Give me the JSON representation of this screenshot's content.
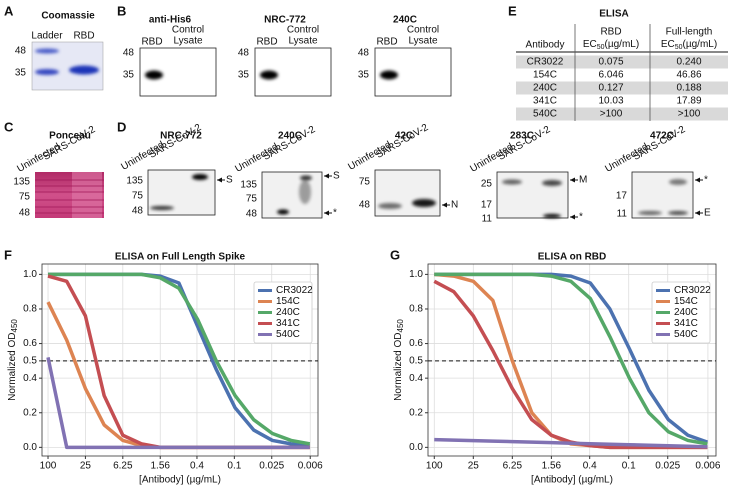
{
  "panels": {
    "A": {
      "label": "A",
      "title": "Coomassie",
      "lanes": [
        "Ladder",
        "RBD"
      ],
      "markers": [
        "48",
        "35"
      ]
    },
    "B": {
      "label": "B",
      "blots": [
        {
          "title": "anti-His6",
          "lane1": "RBD",
          "lane2": [
            "Control",
            "Lysate"
          ],
          "markers": [
            "48",
            "35"
          ]
        },
        {
          "title": "NRC-772",
          "lane1": "RBD",
          "lane2": [
            "Control",
            "Lysate"
          ],
          "markers": [
            "48",
            "35"
          ]
        },
        {
          "title": "240C",
          "lane1": "RBD",
          "lane2": [
            "Control",
            "Lysate"
          ],
          "markers": [
            "48",
            "35"
          ]
        }
      ]
    },
    "C": {
      "label": "C",
      "title": "Ponceau",
      "lanes": [
        "Uninfected",
        "SARS-CoV-2"
      ],
      "markers": [
        "135",
        "75",
        "48"
      ]
    },
    "D": {
      "label": "D",
      "blots": [
        {
          "title": "NRC-772",
          "lanes": [
            "Uninfected",
            "SARS-CoV-2"
          ],
          "markers": [
            "135",
            "75",
            "48"
          ],
          "arrows": [
            "S"
          ]
        },
        {
          "title": "240C",
          "lanes": [
            "Uninfected",
            "SARS-CoV-2"
          ],
          "markers": [
            "135",
            "75",
            "48"
          ],
          "arrows": [
            "S",
            "*"
          ]
        },
        {
          "title": "42C",
          "lanes": [
            "Uninfected",
            "SARS-CoV-2"
          ],
          "markers": [
            "75",
            "48"
          ],
          "arrows": [
            "N"
          ]
        },
        {
          "title": "283C",
          "lanes": [
            "Uninfected",
            "SARS-CoV-2"
          ],
          "markers": [
            "25",
            "17",
            "11"
          ],
          "arrows": [
            "M",
            "*"
          ]
        },
        {
          "title": "472C",
          "lanes": [
            "Uninfected",
            "SARS-CoV-2"
          ],
          "markers": [
            "17",
            "11"
          ],
          "arrows": [
            "*",
            "E"
          ]
        }
      ]
    },
    "E": {
      "label": "E",
      "title": "ELISA",
      "header": {
        "antibody": "Antibody",
        "rbd": "RBD",
        "full": "Full-length",
        "ec": "EC",
        "sub": "50",
        "unit": "(µg/mL)"
      },
      "rows": [
        [
          "CR3022",
          "0.075",
          "0.240"
        ],
        [
          "154C",
          "6.046",
          "46.86"
        ],
        [
          "240C",
          "0.127",
          "0.188"
        ],
        [
          "341C",
          "10.03",
          "17.89"
        ],
        [
          "540C",
          ">100",
          ">100"
        ]
      ]
    }
  },
  "chart_data": [
    {
      "type": "line",
      "panel_label": "F",
      "title": "ELISA on Full Length Spike",
      "xlabel": "[Antibody] (µg/mL)",
      "ylabel": "Normalized OD",
      "ylabel_sub": "450",
      "log_x": true,
      "grid": true,
      "legend": "upper right",
      "hline": 0.5,
      "xlim": [
        125,
        0.0045
      ],
      "ylim": [
        -0.05,
        1.06
      ],
      "xticks": [
        100,
        25,
        6.25,
        1.56,
        0.4,
        0.1,
        0.025,
        0.006
      ],
      "yticks": [
        {
          "value": 0,
          "label": "0.0"
        },
        0.2,
        0.4,
        0.5,
        0.6,
        0.8,
        {
          "value": 1,
          "label": "1.0"
        }
      ],
      "x": [
        100,
        50,
        25,
        12.5,
        6.25,
        3.125,
        1.5625,
        0.78125,
        0.390625,
        0.1953125,
        0.09765625,
        0.048828125,
        0.0244140625,
        0.01220703125,
        0.006103515625
      ],
      "series": [
        {
          "name": "CR3022",
          "color": "#4c72b0",
          "values": [
            1,
            1,
            1,
            1,
            1,
            1,
            0.99,
            0.95,
            0.7,
            0.45,
            0.23,
            0.1,
            0.04,
            0.02,
            0.01
          ]
        },
        {
          "name": "154C",
          "color": "#dd8452",
          "values": [
            0.84,
            0.62,
            0.34,
            0.13,
            0.04,
            0.01,
            0,
            0,
            0,
            0,
            0,
            0,
            0,
            0,
            0
          ]
        },
        {
          "name": "240C",
          "color": "#55a868",
          "values": [
            1,
            1,
            1,
            1,
            1,
            1,
            0.98,
            0.92,
            0.74,
            0.5,
            0.3,
            0.16,
            0.08,
            0.04,
            0.02
          ]
        },
        {
          "name": "341C",
          "color": "#c44e52",
          "values": [
            0.99,
            0.96,
            0.76,
            0.3,
            0.07,
            0.02,
            0,
            0,
            0,
            0,
            0,
            0,
            0,
            0,
            0
          ]
        },
        {
          "name": "540C",
          "color": "#8172b3",
          "values": [
            0.52,
            0,
            0,
            0,
            0,
            0,
            0,
            0,
            0,
            0,
            0,
            0,
            0,
            0,
            0
          ]
        }
      ]
    },
    {
      "type": "line",
      "panel_label": "G",
      "title": "ELISA on RBD",
      "xlabel": "[Antibody] (µg/mL)",
      "ylabel": "Normalized OD",
      "ylabel_sub": "450",
      "log_x": true,
      "grid": true,
      "legend": "upper right",
      "hline": 0.5,
      "xlim": [
        125,
        0.0045
      ],
      "ylim": [
        -0.05,
        1.06
      ],
      "xticks": [
        100,
        25,
        6.25,
        1.56,
        0.4,
        0.1,
        0.025,
        0.006
      ],
      "yticks": [
        {
          "value": 0,
          "label": "0.0"
        },
        0.2,
        0.4,
        0.5,
        0.6,
        0.8,
        {
          "value": 1,
          "label": "1.0"
        }
      ],
      "x": [
        100,
        50,
        25,
        12.5,
        6.25,
        3.125,
        1.5625,
        0.78125,
        0.390625,
        0.1953125,
        0.09765625,
        0.048828125,
        0.0244140625,
        0.01220703125,
        0.006103515625
      ],
      "series": [
        {
          "name": "CR3022",
          "color": "#4c72b0",
          "values": [
            1,
            1,
            1,
            1,
            1,
            1,
            1,
            0.99,
            0.95,
            0.8,
            0.57,
            0.33,
            0.16,
            0.07,
            0.03
          ]
        },
        {
          "name": "154C",
          "color": "#dd8452",
          "values": [
            1,
            0.99,
            0.96,
            0.85,
            0.5,
            0.2,
            0.07,
            0.02,
            0.01,
            0,
            0,
            0,
            0,
            0,
            0
          ]
        },
        {
          "name": "240C",
          "color": "#55a868",
          "values": [
            1,
            1,
            1,
            1,
            1,
            1,
            0.99,
            0.96,
            0.86,
            0.64,
            0.4,
            0.2,
            0.09,
            0.04,
            0.02
          ]
        },
        {
          "name": "341C",
          "color": "#c44e52",
          "values": [
            0.96,
            0.9,
            0.76,
            0.56,
            0.34,
            0.16,
            0.07,
            0.03,
            0.01,
            0,
            0,
            0,
            0,
            0,
            0
          ]
        },
        {
          "name": "540C",
          "color": "#8172b3",
          "values": [
            0.045,
            0.042,
            0.039,
            0.036,
            0.033,
            0.03,
            0.027,
            0.024,
            0.021,
            0.018,
            0.015,
            0.012,
            0.009,
            0.006,
            0.003
          ]
        }
      ]
    }
  ]
}
